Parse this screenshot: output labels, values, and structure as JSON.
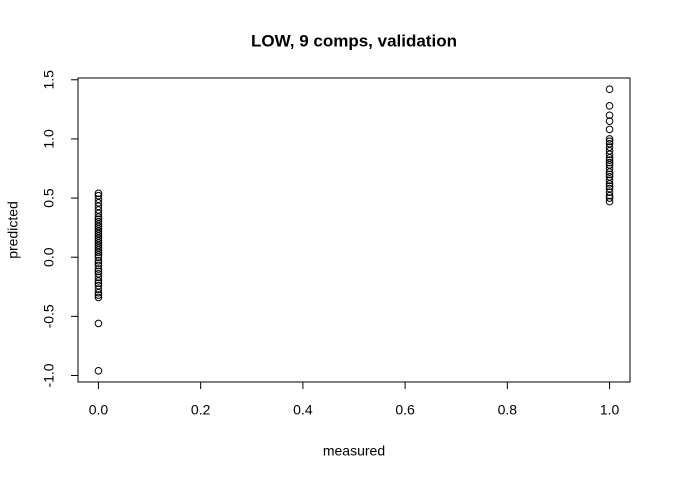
{
  "chart_data": {
    "type": "scatter",
    "title": "LOW, 9 comps, validation",
    "x_label": "measured",
    "y_label": "predicted",
    "series": [
      {
        "color": "#000000",
        "x": [
          0,
          0,
          0,
          0,
          0,
          0,
          0,
          0,
          0,
          0,
          0,
          0,
          0,
          0,
          0,
          0,
          0,
          0,
          0,
          0,
          0,
          0,
          0,
          0,
          0,
          0,
          0,
          0,
          0,
          0,
          0,
          0,
          0,
          0,
          0,
          0,
          0,
          0,
          0,
          0,
          0,
          1,
          1,
          1,
          1,
          1,
          1,
          1,
          1,
          1,
          1,
          1,
          1,
          1,
          1,
          1,
          1,
          1,
          1,
          1,
          1,
          1,
          1,
          1,
          1,
          1,
          1,
          1
        ],
        "values": [
          -0.96,
          -0.56,
          -0.34,
          -0.32,
          -0.3,
          -0.27,
          -0.24,
          -0.22,
          -0.2,
          -0.17,
          -0.14,
          -0.12,
          -0.1,
          -0.07,
          -0.05,
          -0.03,
          0,
          0.02,
          0.04,
          0.06,
          0.08,
          0.1,
          0.12,
          0.14,
          0.16,
          0.18,
          0.2,
          0.22,
          0.24,
          0.26,
          0.28,
          0.3,
          0.32,
          0.34,
          0.37,
          0.4,
          0.43,
          0.46,
          0.49,
          0.52,
          0.54,
          0.47,
          0.5,
          0.52,
          0.55,
          0.58,
          0.6,
          0.62,
          0.65,
          0.68,
          0.7,
          0.72,
          0.75,
          0.78,
          0.8,
          0.82,
          0.84,
          0.87,
          0.9,
          0.93,
          0.96,
          0.98,
          1.0,
          1.08,
          1.15,
          1.2,
          1.28,
          1.42
        ]
      }
    ],
    "xlim": [
      -0.04,
      1.04
    ],
    "xticks": [
      {
        "value": 0,
        "label": "0.0"
      },
      0.2,
      0.4,
      0.6,
      0.8,
      {
        "value": 1,
        "label": "1.0"
      }
    ],
    "ylim": [
      -1.055,
      1.515
    ],
    "yticks": [
      {
        "value": -1,
        "label": "-1.0"
      },
      -0.5,
      {
        "value": 0,
        "label": "0.0"
      },
      0.5,
      {
        "value": 1,
        "label": "1.0"
      },
      1.5
    ]
  }
}
